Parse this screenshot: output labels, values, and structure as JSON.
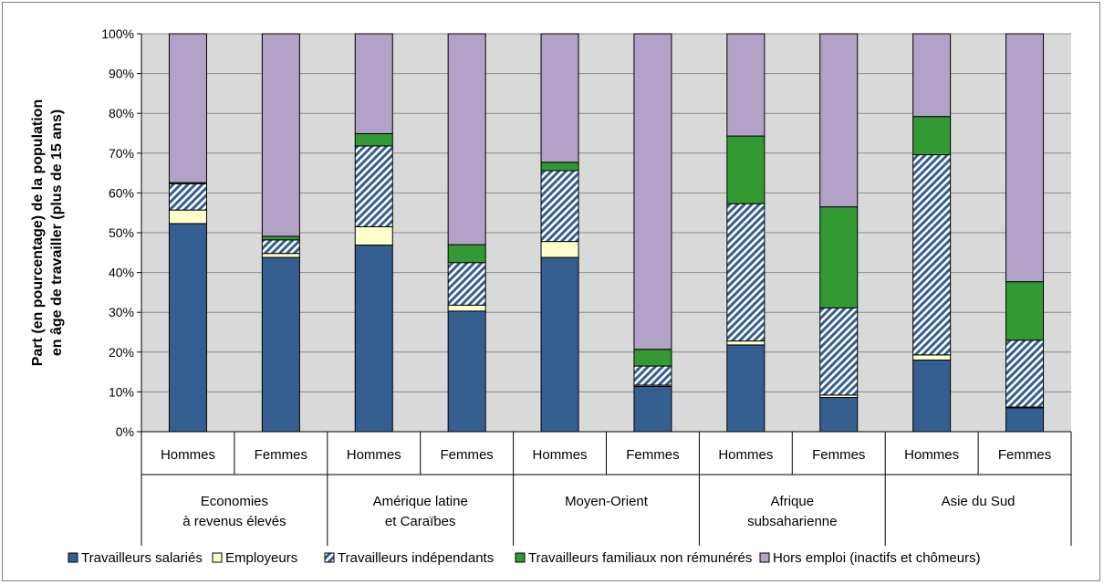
{
  "chart_data": {
    "type": "bar",
    "stacked": true,
    "percent": true,
    "ylabel_lines": [
      "Part (en pourcentage) de la population",
      "en âge de travailler (plus de 15 ans)"
    ],
    "ylim": [
      0,
      100
    ],
    "yticks": [
      "0%",
      "10%",
      "20%",
      "30%",
      "40%",
      "50%",
      "60%",
      "70%",
      "80%",
      "90%",
      "100%"
    ],
    "grid": true,
    "legend_position": "bottom",
    "groups": [
      {
        "label_lines": [
          "Economies",
          "à revenus élevés"
        ],
        "categories": [
          "Hommes",
          "Femmes"
        ]
      },
      {
        "label_lines": [
          "Amérique latine",
          "et Caraïbes"
        ],
        "categories": [
          "Hommes",
          "Femmes"
        ]
      },
      {
        "label_lines": [
          "Moyen-Orient"
        ],
        "categories": [
          "Hommes",
          "Femmes"
        ]
      },
      {
        "label_lines": [
          "Afrique",
          "subsaharienne"
        ],
        "categories": [
          "Hommes",
          "Femmes"
        ]
      },
      {
        "label_lines": [
          "Asie du Sud"
        ],
        "categories": [
          "Hommes",
          "Femmes"
        ]
      }
    ],
    "categories": [
      "Hommes",
      "Femmes",
      "Hommes",
      "Femmes",
      "Hommes",
      "Femmes",
      "Hommes",
      "Femmes",
      "Hommes",
      "Femmes"
    ],
    "series": [
      {
        "name": "Travailleurs salariés",
        "color": "#355f91",
        "pattern": "solid",
        "values": [
          52.3,
          43.8,
          46.9,
          30.3,
          43.8,
          11.4,
          21.8,
          8.6,
          18.0,
          6.0
        ]
      },
      {
        "name": "Employeurs",
        "color": "#ffffcc",
        "pattern": "solid",
        "values": [
          3.4,
          1.0,
          4.6,
          1.5,
          4.0,
          0.3,
          1.0,
          0.6,
          1.3,
          0.2
        ]
      },
      {
        "name": "Travailleurs indépendants",
        "color": "#355f91",
        "pattern": "diagonal-stripes",
        "values": [
          6.6,
          3.4,
          20.3,
          10.7,
          17.8,
          4.8,
          34.5,
          21.9,
          50.3,
          16.8
        ]
      },
      {
        "name": "Travailleurs familiaux non rémunérés",
        "color": "#339933",
        "pattern": "solid",
        "values": [
          0.3,
          0.9,
          3.1,
          4.5,
          2.1,
          4.2,
          17.0,
          25.4,
          9.6,
          14.7
        ]
      },
      {
        "name": "Hors emploi (inactifs et chômeurs)",
        "color": "#b3a2c7",
        "pattern": "solid",
        "values": [
          37.4,
          50.9,
          25.1,
          53.0,
          32.3,
          79.3,
          25.7,
          43.5,
          20.8,
          62.3
        ]
      }
    ]
  }
}
